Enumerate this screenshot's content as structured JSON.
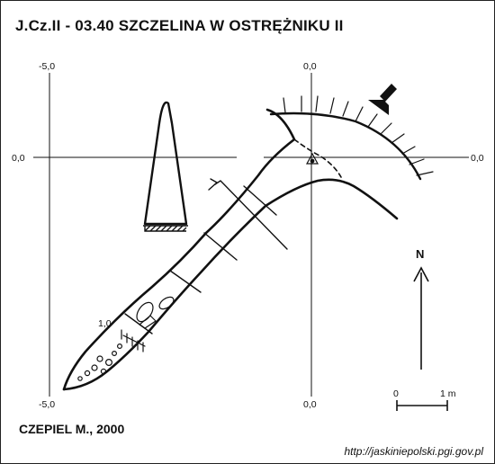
{
  "map": {
    "title": "J.Cz.II - 03.40  SZCZELINA W OSTRĘŻNIKU II",
    "author": "CZEPIEL M., 2000",
    "source": "http://jaskiniepolski.pgi.gov.pl",
    "north_label": "N",
    "grid_labels": {
      "left_top": "-5,0",
      "left_middle": "0,0",
      "left_bottom": "-5,0",
      "right_top": "0,0",
      "right_middle": "0,0",
      "right_bottom": "0,0"
    },
    "depth_label": "1,0",
    "scale_bar": {
      "start_label": "0",
      "end_label": "1 m"
    }
  }
}
